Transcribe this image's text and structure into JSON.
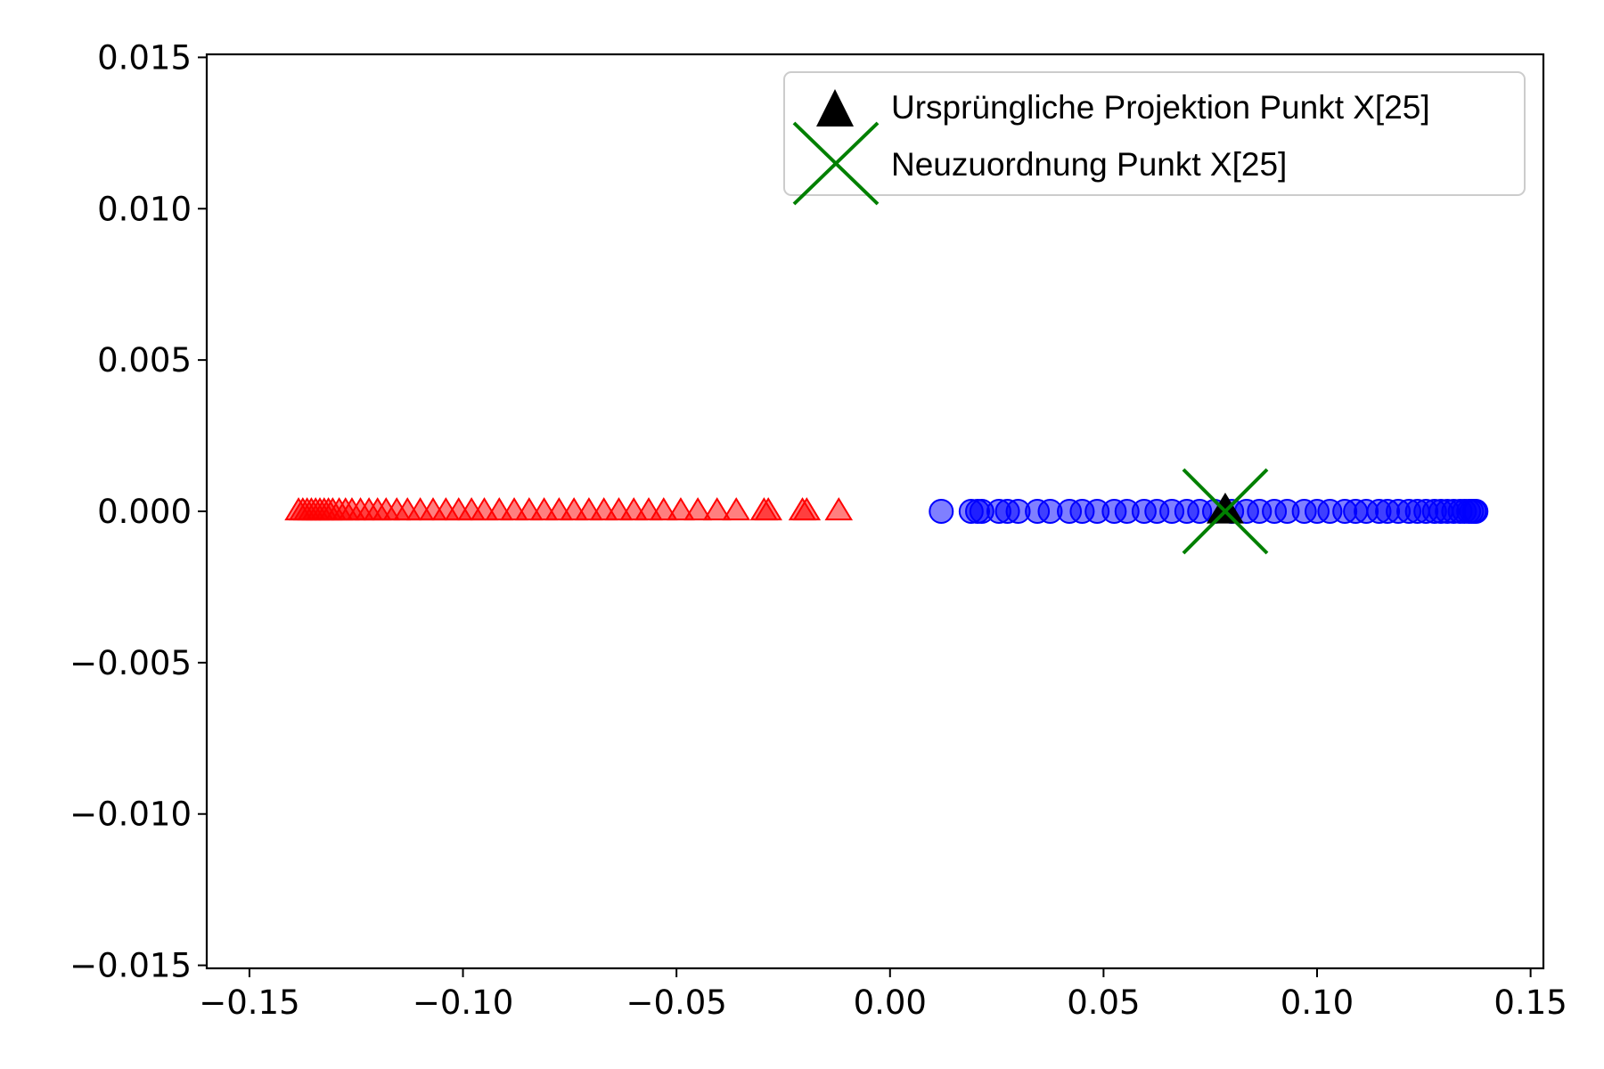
{
  "chart_data": {
    "type": "scatter",
    "title": "",
    "xlabel": "",
    "ylabel": "",
    "xlim": [
      -0.16,
      0.153
    ],
    "ylim": [
      -0.0151,
      0.0151
    ],
    "grid": false,
    "legend_position": "top-right",
    "xticks": [
      -0.15,
      -0.1,
      -0.05,
      0.0,
      0.05,
      0.1,
      0.15
    ],
    "xtick_labels": [
      "−0.15",
      "−0.10",
      "−0.05",
      "0.00",
      "0.05",
      "0.10",
      "0.15"
    ],
    "yticks": [
      0.015,
      0.01,
      0.005,
      0.0,
      -0.005,
      -0.01,
      -0.015
    ],
    "ytick_labels": [
      "0.015",
      "0.010",
      "0.005",
      "0.000",
      "−0.005",
      "−0.010",
      "−0.015"
    ],
    "series": [
      {
        "marker": "triangle",
        "color": "#ff0000",
        "opacity": 0.5,
        "x": [
          -0.1385,
          -0.1375,
          -0.1365,
          -0.1355,
          -0.1345,
          -0.1335,
          -0.1325,
          -0.1315,
          -0.1305,
          -0.129,
          -0.1275,
          -0.126,
          -0.124,
          -0.122,
          -0.12,
          -0.118,
          -0.1155,
          -0.113,
          -0.11,
          -0.107,
          -0.104,
          -0.101,
          -0.098,
          -0.095,
          -0.0915,
          -0.088,
          -0.0845,
          -0.081,
          -0.0775,
          -0.074,
          -0.0705,
          -0.067,
          -0.0635,
          -0.06,
          -0.0565,
          -0.053,
          -0.049,
          -0.045,
          -0.0405,
          -0.036,
          -0.0295,
          -0.0285,
          -0.0205,
          -0.0195,
          -0.012
        ],
        "y": [
          0,
          0,
          0,
          0,
          0,
          0,
          0,
          0,
          0,
          0,
          0,
          0,
          0,
          0,
          0,
          0,
          0,
          0,
          0,
          0,
          0,
          0,
          0,
          0,
          0,
          0,
          0,
          0,
          0,
          0,
          0,
          0,
          0,
          0,
          0,
          0,
          0,
          0,
          0,
          0,
          0,
          0,
          0,
          0,
          0
        ]
      },
      {
        "marker": "circle",
        "color": "#0000ff",
        "opacity": 0.5,
        "x": [
          0.012,
          0.019,
          0.0205,
          0.0215,
          0.0255,
          0.0275,
          0.03,
          0.0345,
          0.0375,
          0.042,
          0.045,
          0.0485,
          0.0525,
          0.0555,
          0.0595,
          0.0625,
          0.066,
          0.0695,
          0.0725,
          0.076,
          0.08,
          0.0835,
          0.0865,
          0.09,
          0.093,
          0.097,
          0.1,
          0.103,
          0.1065,
          0.109,
          0.1115,
          0.1145,
          0.1165,
          0.119,
          0.1215,
          0.1235,
          0.1255,
          0.1275,
          0.129,
          0.1305,
          0.132,
          0.1335,
          0.1345,
          0.1355,
          0.1362,
          0.1368,
          0.1372
        ],
        "y": [
          0,
          0,
          0,
          0,
          0,
          0,
          0,
          0,
          0,
          0,
          0,
          0,
          0,
          0,
          0,
          0,
          0,
          0,
          0,
          0,
          0,
          0,
          0,
          0,
          0,
          0,
          0,
          0,
          0,
          0,
          0,
          0,
          0,
          0,
          0,
          0,
          0,
          0,
          0,
          0,
          0,
          0,
          0,
          0,
          0,
          0,
          0
        ]
      },
      {
        "name": "Ursprüngliche Projektion Punkt X[25]",
        "marker": "triangle",
        "color": "#000000",
        "x": [
          0.0785
        ],
        "y": [
          0
        ]
      },
      {
        "name": "Neuzuordnung Punkt X[25]",
        "marker": "x",
        "color": "#008000",
        "x": [
          0.0785
        ],
        "y": [
          0
        ]
      }
    ]
  }
}
